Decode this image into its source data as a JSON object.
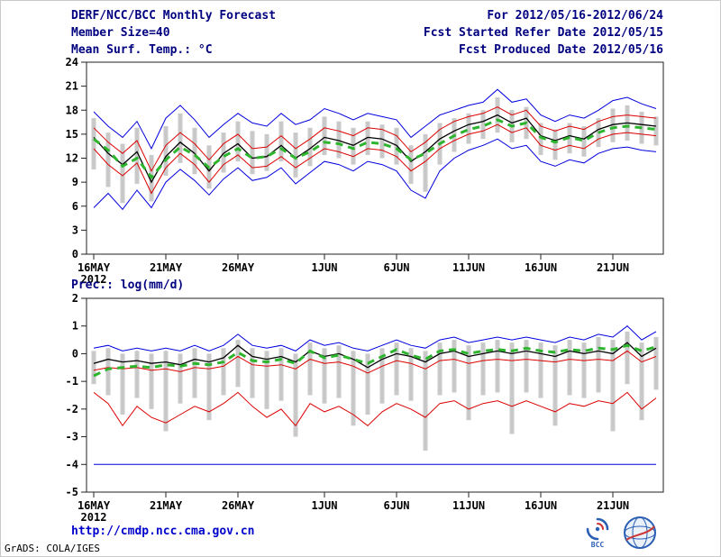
{
  "header": {
    "title": "DERF/NCC/BCC Monthly Forecast",
    "member_size": "Member Size=40",
    "temp_label": "Mean Surf. Temp.: °C",
    "for_range": "For 2012/05/16-2012/06/24",
    "fcst_started": "Fcst Started Refer Date 2012/05/15",
    "fcst_produced": "Fcst Produced Date 2012/05/16"
  },
  "footer": {
    "url": "http://cmdp.ncc.cma.gov.cn",
    "grads_credit": "GrADS: COLA/IGES",
    "bcc_logo_label": "BCC"
  },
  "colors": {
    "header_text": "#000080",
    "tick_text": "#000000",
    "url_text": "#0000cc",
    "logo_blue": "#2b5fb3",
    "logo_red": "#cc3333",
    "ensemble_bar": "#c9c9c9",
    "max_min_line": "#0000dd",
    "quartile_line": "#dd0000",
    "mean_line": "#000000",
    "climatology_line": "#2db52d"
  },
  "chart_data": [
    {
      "type": "line",
      "title": "Mean Surf. Temp.: °C",
      "xlabel": "",
      "ylabel": "",
      "ylim": [
        0,
        24
      ],
      "yticks": [
        0,
        3,
        6,
        9,
        12,
        15,
        18,
        21,
        24
      ],
      "x_count": 40,
      "xticks": [
        {
          "index": 0,
          "label": "16MAY",
          "sub": "2012"
        },
        {
          "index": 5,
          "label": "21MAY"
        },
        {
          "index": 10,
          "label": "26MAY"
        },
        {
          "index": 16,
          "label": "1JUN"
        },
        {
          "index": 21,
          "label": "6JUN"
        },
        {
          "index": 26,
          "label": "11JUN"
        },
        {
          "index": 31,
          "label": "16JUN"
        },
        {
          "index": 36,
          "label": "21JUN"
        }
      ],
      "bars": {
        "color": "#c9c9c9",
        "high": [
          17.0,
          15.2,
          13.8,
          15.8,
          12.4,
          16.0,
          17.6,
          15.8,
          13.6,
          15.2,
          16.6,
          15.4,
          15.0,
          16.6,
          15.2,
          15.8,
          17.2,
          16.6,
          15.8,
          16.6,
          16.2,
          15.8,
          13.6,
          15.0,
          16.4,
          17.0,
          17.6,
          18.0,
          19.6,
          18.0,
          18.4,
          16.4,
          15.6,
          16.4,
          16.0,
          17.0,
          18.2,
          18.6,
          17.8,
          17.2
        ],
        "low": [
          10.6,
          8.4,
          6.4,
          8.8,
          6.6,
          9.8,
          11.4,
          10.0,
          8.2,
          10.2,
          11.6,
          10.0,
          10.4,
          11.6,
          9.6,
          11.0,
          12.4,
          12.0,
          11.2,
          12.4,
          12.0,
          11.2,
          8.8,
          7.8,
          11.2,
          12.8,
          13.8,
          14.4,
          15.2,
          14.0,
          14.4,
          12.4,
          11.8,
          12.6,
          12.2,
          13.4,
          14.0,
          14.2,
          13.8,
          13.6
        ]
      },
      "series": [
        {
          "name": "ensemble-max",
          "color": "#0000dd",
          "width": 1,
          "values": [
            17.8,
            16.0,
            14.6,
            16.6,
            13.2,
            17.0,
            18.6,
            16.8,
            14.6,
            16.2,
            17.6,
            16.4,
            16.0,
            17.6,
            16.2,
            16.8,
            18.2,
            17.6,
            16.8,
            17.6,
            17.2,
            16.8,
            14.6,
            16.0,
            17.4,
            18.0,
            18.6,
            19.0,
            20.6,
            19.0,
            19.4,
            17.4,
            16.6,
            17.4,
            17.0,
            18.0,
            19.2,
            19.6,
            18.8,
            18.2
          ]
        },
        {
          "name": "ensemble-min",
          "color": "#0000dd",
          "width": 1,
          "values": [
            5.8,
            7.6,
            5.6,
            8.0,
            5.8,
            9.0,
            10.6,
            9.2,
            7.4,
            9.4,
            10.8,
            9.2,
            9.6,
            10.8,
            8.8,
            10.2,
            11.6,
            11.2,
            10.4,
            11.6,
            11.2,
            10.4,
            8.0,
            7.0,
            10.4,
            12.0,
            13.0,
            13.6,
            14.4,
            13.2,
            13.6,
            11.6,
            11.0,
            11.8,
            11.4,
            12.6,
            13.2,
            13.4,
            13.0,
            12.8
          ]
        },
        {
          "name": "upper-quartile",
          "color": "#dd0000",
          "width": 1,
          "values": [
            15.8,
            14.0,
            12.6,
            14.2,
            10.4,
            13.6,
            15.2,
            13.8,
            11.8,
            13.8,
            15.0,
            13.2,
            13.4,
            14.8,
            13.2,
            14.4,
            15.8,
            15.4,
            14.8,
            15.8,
            15.6,
            14.8,
            12.8,
            14.0,
            15.6,
            16.6,
            17.2,
            17.6,
            18.4,
            17.4,
            18.0,
            16.0,
            15.4,
            16.0,
            15.6,
            16.6,
            17.2,
            17.4,
            17.2,
            17.0
          ]
        },
        {
          "name": "lower-quartile",
          "color": "#dd0000",
          "width": 1,
          "values": [
            13.2,
            11.2,
            9.8,
            11.4,
            7.6,
            10.8,
            12.6,
            11.2,
            9.0,
            11.2,
            12.4,
            10.8,
            11.0,
            12.2,
            10.8,
            12.0,
            13.2,
            12.8,
            12.2,
            13.2,
            13.0,
            12.2,
            10.4,
            11.6,
            13.2,
            14.2,
            15.0,
            15.4,
            16.2,
            15.2,
            15.8,
            13.6,
            13.0,
            13.6,
            13.2,
            14.4,
            15.0,
            15.2,
            15.0,
            14.8
          ]
        },
        {
          "name": "ensemble-mean",
          "color": "#000000",
          "width": 1.3,
          "values": [
            14.6,
            12.6,
            11.2,
            12.8,
            9.0,
            12.2,
            14.0,
            12.6,
            10.4,
            12.6,
            13.8,
            12.0,
            12.2,
            13.6,
            12.0,
            13.2,
            14.6,
            14.2,
            13.6,
            14.6,
            14.4,
            13.6,
            11.6,
            12.8,
            14.4,
            15.4,
            16.2,
            16.6,
            17.4,
            16.4,
            17.0,
            14.8,
            14.2,
            14.8,
            14.4,
            15.6,
            16.2,
            16.4,
            16.2,
            16.0
          ]
        },
        {
          "name": "climatology",
          "color": "#2db52d",
          "width": 3,
          "dash": "8 6",
          "values": [
            14.4,
            13.0,
            11.0,
            12.0,
            9.6,
            11.8,
            13.4,
            12.4,
            10.8,
            12.2,
            13.2,
            12.0,
            12.2,
            13.2,
            12.0,
            12.8,
            14.0,
            13.8,
            13.2,
            14.0,
            13.8,
            13.2,
            11.8,
            12.6,
            13.8,
            14.8,
            15.6,
            16.0,
            16.8,
            16.0,
            16.4,
            14.6,
            14.0,
            14.6,
            14.2,
            15.2,
            15.8,
            16.0,
            15.8,
            15.6
          ]
        }
      ]
    },
    {
      "type": "line",
      "title": "Prec.: log(mm/d)",
      "xlabel": "",
      "ylabel": "",
      "ylim": [
        -5,
        2
      ],
      "yticks": [
        -5,
        -4,
        -3,
        -2,
        -1,
        0,
        1,
        2
      ],
      "x_count": 40,
      "xticks": [
        {
          "index": 0,
          "label": "16MAY",
          "sub": "2012"
        },
        {
          "index": 5,
          "label": "21MAY"
        },
        {
          "index": 10,
          "label": "26MAY"
        },
        {
          "index": 16,
          "label": "1JUN"
        },
        {
          "index": 21,
          "label": "6JUN"
        },
        {
          "index": 26,
          "label": "11JUN"
        },
        {
          "index": 31,
          "label": "16JUN"
        },
        {
          "index": 36,
          "label": "21JUN"
        }
      ],
      "bars": {
        "color": "#c9c9c9",
        "high": [
          0.1,
          0.2,
          0.0,
          0.1,
          0.0,
          0.1,
          0.0,
          0.2,
          0.0,
          0.2,
          0.5,
          0.2,
          0.1,
          0.2,
          0.0,
          0.4,
          0.2,
          0.3,
          0.1,
          0.0,
          0.2,
          0.4,
          0.2,
          0.1,
          0.4,
          0.5,
          0.3,
          0.4,
          0.5,
          0.4,
          0.5,
          0.4,
          0.3,
          0.5,
          0.4,
          0.6,
          0.5,
          0.8,
          0.4,
          0.6
        ],
        "low": [
          -1.1,
          -1.5,
          -2.2,
          -1.6,
          -2.0,
          -2.8,
          -1.8,
          -1.6,
          -2.4,
          -1.5,
          -1.2,
          -1.6,
          -2.0,
          -1.7,
          -3.0,
          -1.5,
          -1.8,
          -1.6,
          -2.6,
          -2.2,
          -1.8,
          -1.5,
          -1.7,
          -3.5,
          -1.5,
          -1.4,
          -2.4,
          -1.5,
          -1.4,
          -2.9,
          -1.4,
          -1.6,
          -2.6,
          -1.5,
          -1.6,
          -1.4,
          -2.8,
          -1.1,
          -2.4,
          -1.3
        ]
      },
      "series": [
        {
          "name": "ensemble-max",
          "color": "#0000dd",
          "width": 1,
          "values": [
            0.2,
            0.3,
            0.1,
            0.2,
            0.1,
            0.2,
            0.1,
            0.3,
            0.1,
            0.3,
            0.7,
            0.3,
            0.2,
            0.3,
            0.1,
            0.5,
            0.3,
            0.4,
            0.2,
            0.1,
            0.3,
            0.5,
            0.3,
            0.2,
            0.5,
            0.6,
            0.4,
            0.5,
            0.6,
            0.5,
            0.6,
            0.5,
            0.4,
            0.6,
            0.5,
            0.7,
            0.6,
            1.0,
            0.5,
            0.8
          ]
        },
        {
          "name": "ensemble-min",
          "color": "#0000dd",
          "width": 1,
          "constant": -4
        },
        {
          "name": "upper-quartile",
          "color": "#dd0000",
          "width": 1,
          "values": [
            -0.6,
            -0.5,
            -0.55,
            -0.5,
            -0.6,
            -0.55,
            -0.65,
            -0.5,
            -0.55,
            -0.45,
            -0.1,
            -0.4,
            -0.45,
            -0.4,
            -0.55,
            -0.2,
            -0.35,
            -0.3,
            -0.45,
            -0.7,
            -0.45,
            -0.25,
            -0.35,
            -0.55,
            -0.25,
            -0.2,
            -0.35,
            -0.25,
            -0.2,
            -0.25,
            -0.2,
            -0.25,
            -0.3,
            -0.2,
            -0.25,
            -0.2,
            -0.25,
            0.1,
            -0.3,
            -0.1
          ]
        },
        {
          "name": "lower-quartile",
          "color": "#dd0000",
          "width": 1,
          "values": [
            -1.4,
            -1.8,
            -2.6,
            -1.9,
            -2.3,
            -2.5,
            -2.2,
            -1.9,
            -2.1,
            -1.8,
            -1.4,
            -1.9,
            -2.3,
            -2.0,
            -2.6,
            -1.8,
            -2.1,
            -1.9,
            -2.2,
            -2.6,
            -2.1,
            -1.8,
            -2.0,
            -2.3,
            -1.8,
            -1.7,
            -2.0,
            -1.8,
            -1.7,
            -1.9,
            -1.7,
            -1.9,
            -2.1,
            -1.8,
            -1.9,
            -1.7,
            -1.8,
            -1.4,
            -2.0,
            -1.6
          ]
        },
        {
          "name": "ensemble-mean",
          "color": "#000000",
          "width": 1.3,
          "values": [
            -0.35,
            -0.2,
            -0.3,
            -0.25,
            -0.35,
            -0.3,
            -0.4,
            -0.2,
            -0.3,
            -0.15,
            0.3,
            -0.1,
            -0.2,
            -0.1,
            -0.3,
            0.1,
            -0.1,
            0.0,
            -0.2,
            -0.5,
            -0.2,
            0.0,
            -0.1,
            -0.3,
            0.0,
            0.1,
            -0.1,
            0.0,
            0.1,
            0.0,
            0.1,
            0.0,
            -0.1,
            0.1,
            0.0,
            0.1,
            0.0,
            0.4,
            -0.1,
            0.2
          ]
        },
        {
          "name": "climatology",
          "color": "#2db52d",
          "width": 3,
          "dash": "8 6",
          "values": [
            -0.8,
            -0.55,
            -0.5,
            -0.45,
            -0.5,
            -0.4,
            -0.45,
            -0.35,
            -0.4,
            -0.3,
            0.05,
            -0.25,
            -0.3,
            -0.2,
            -0.35,
            0.1,
            -0.15,
            -0.05,
            -0.2,
            -0.35,
            -0.1,
            0.15,
            -0.05,
            -0.2,
            0.1,
            0.15,
            0.0,
            0.1,
            0.15,
            0.1,
            0.2,
            0.1,
            0.05,
            0.15,
            0.1,
            0.2,
            0.15,
            0.3,
            0.1,
            0.25
          ]
        }
      ]
    }
  ]
}
